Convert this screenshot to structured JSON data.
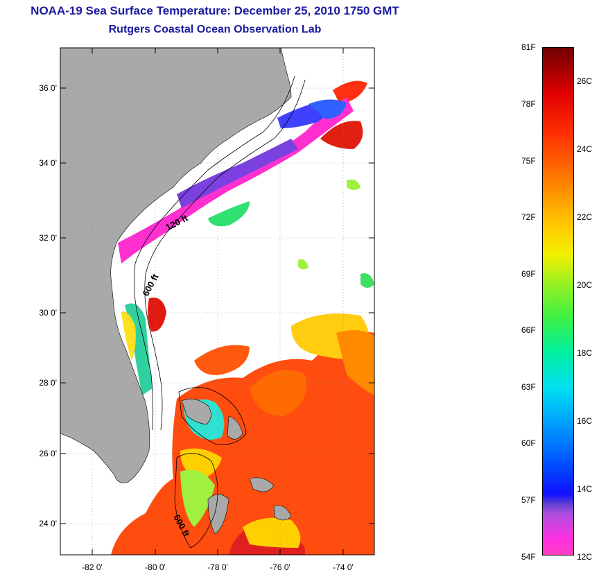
{
  "title": {
    "line1": "NOAA-19 Sea Surface Temperature:  December 25, 2010 1750 GMT",
    "line2": "Rutgers Coastal Ocean Observation Lab"
  },
  "map": {
    "lat_ticks": [
      "36 0'",
      "34 0'",
      "32 0'",
      "30 0'",
      "28 0'",
      "26 0'",
      "24 0'"
    ],
    "lon_ticks": [
      "-82 0'",
      "-80 0'",
      "-78 0'",
      "-76 0'",
      "-74 0'"
    ],
    "contour_labels": [
      "120 ft",
      "600 ft",
      "600 ft"
    ],
    "colors": {
      "land": "#a9a9a9",
      "ocean_no_data": "#ffffff"
    }
  },
  "colorbar": {
    "fahrenheit": [
      "81F",
      "78F",
      "75F",
      "72F",
      "69F",
      "66F",
      "63F",
      "60F",
      "57F",
      "54F"
    ],
    "celsius": [
      "26C",
      "24C",
      "22C",
      "20C",
      "18C",
      "16C",
      "14C",
      "12C"
    ]
  }
}
